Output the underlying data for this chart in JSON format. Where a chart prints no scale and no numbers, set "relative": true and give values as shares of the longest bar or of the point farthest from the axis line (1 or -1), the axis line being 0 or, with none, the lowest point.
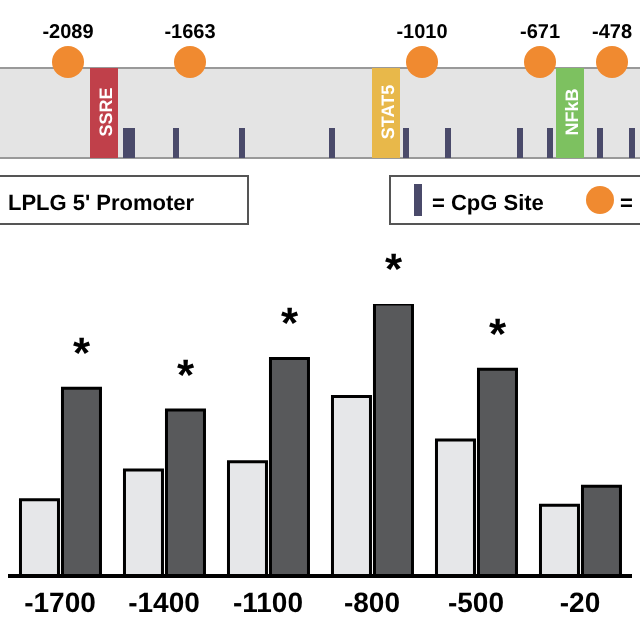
{
  "chart_data": [
    {
      "type": "other",
      "annotations": [
        "-2089",
        "-1663",
        "-1010",
        "-671",
        "-478",
        "SSRE",
        "STAT5",
        "NFkB",
        "LPLG 5' Promoter",
        "= CpG Site",
        "="
      ]
    },
    {
      "type": "bar",
      "relative": true,
      "categories": [
        "-1700",
        "-1400",
        "-1100",
        "-800",
        "-500",
        "-20"
      ],
      "series": [
        {
          "color": "#e6e7e9",
          "values": [
            0.28,
            0.39,
            0.42,
            0.66,
            0.5,
            0.26
          ]
        },
        {
          "color": "#58595b",
          "values": [
            0.69,
            0.61,
            0.8,
            1,
            0.76,
            0.33
          ]
        }
      ],
      "annotations": [
        "*",
        "*",
        "*",
        "*",
        "*"
      ]
    }
  ]
}
